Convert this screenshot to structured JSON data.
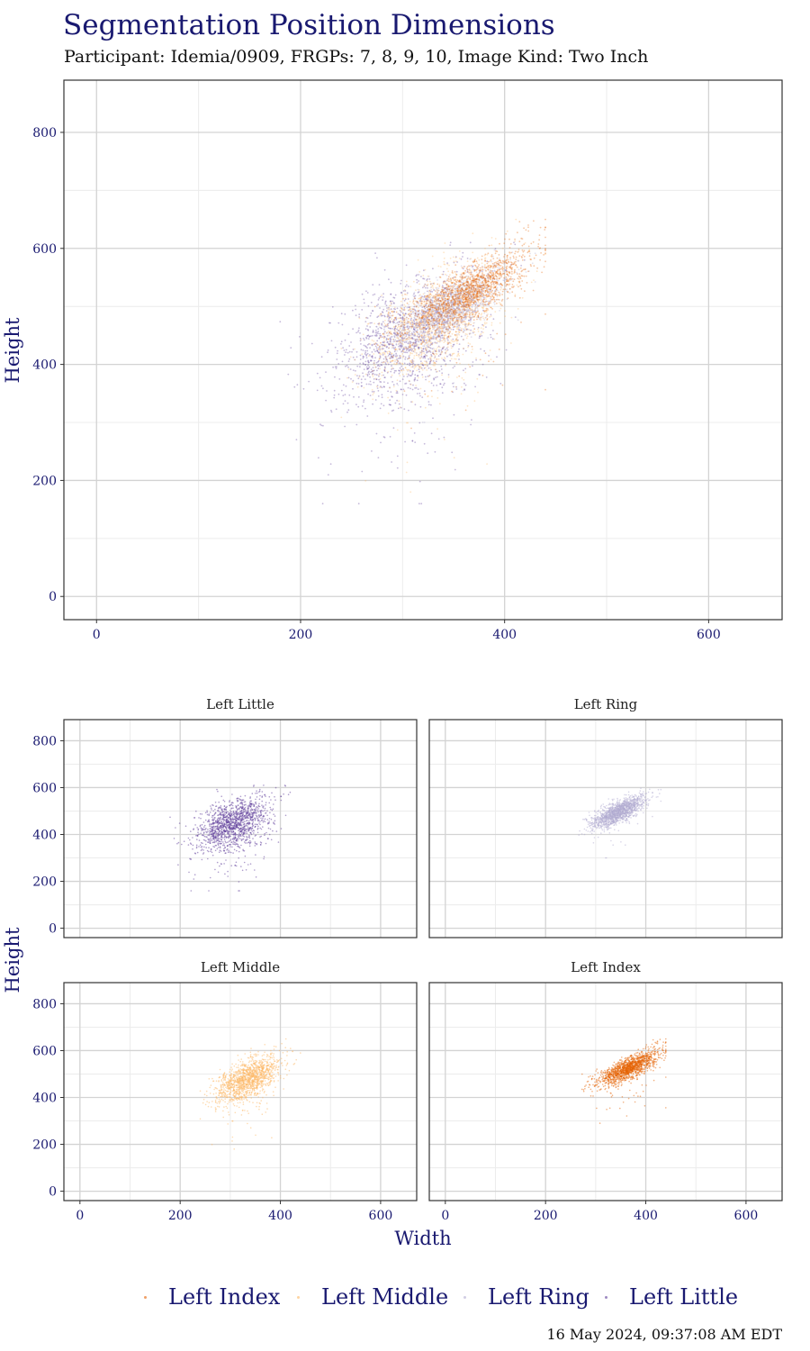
{
  "title": "Segmentation Position Dimensions",
  "subtitle": "Participant: Idemia/0909, FRGPs: 7, 8, 9, 10, Image Kind: Two Inch",
  "timestamp": "16 May 2024, 09:37:08 AM EDT",
  "colors": {
    "title": "#191970",
    "axis_text": "#191970",
    "left_little": "#5e3c99",
    "left_ring": "#b2abd2",
    "left_middle": "#fdb863",
    "left_index": "#e66101",
    "grid_major": "#d3d3d3",
    "grid_minor": "#ececec",
    "panel_border": "#333333"
  },
  "legend": {
    "position": "bottom",
    "items": [
      {
        "label": "Left Index",
        "color_key": "left_index"
      },
      {
        "label": "Left Middle",
        "color_key": "left_middle"
      },
      {
        "label": "Left Ring",
        "color_key": "left_ring"
      },
      {
        "label": "Left Little",
        "color_key": "left_little"
      }
    ]
  },
  "chart_data": [
    {
      "type": "scatter",
      "chart": "combined",
      "xlabel": "",
      "ylabel": "Height",
      "xlim": [
        -32,
        672
      ],
      "ylim": [
        -40,
        890
      ],
      "xticks": [
        0,
        200,
        400,
        600
      ],
      "yticks": [
        0,
        200,
        400,
        600,
        800
      ],
      "grid": true,
      "series": [
        {
          "name": "Left Little",
          "color_key": "left_little",
          "center": [
            305,
            450
          ],
          "width_range": [
            180,
            430
          ],
          "height_range": [
            160,
            610
          ]
        },
        {
          "name": "Left Ring",
          "color_key": "left_ring",
          "center": [
            345,
            495
          ],
          "width_range": [
            250,
            430
          ],
          "height_range": [
            300,
            620
          ]
        },
        {
          "name": "Left Middle",
          "color_key": "left_middle",
          "center": [
            335,
            480
          ],
          "width_range": [
            240,
            440
          ],
          "height_range": [
            180,
            650
          ]
        },
        {
          "name": "Left Index",
          "color_key": "left_index",
          "center": [
            365,
            525
          ],
          "width_range": [
            240,
            440
          ],
          "height_range": [
            230,
            650
          ]
        }
      ]
    },
    {
      "type": "scatter",
      "chart": "facets",
      "xlabel": "Width",
      "ylabel": "Height",
      "xlim": [
        -32,
        672
      ],
      "ylim": [
        -40,
        890
      ],
      "xticks": [
        0,
        200,
        400,
        600
      ],
      "yticks": [
        0,
        200,
        400,
        600,
        800
      ],
      "grid": true,
      "panels": [
        {
          "title": "Left Little",
          "series_index": 0
        },
        {
          "title": "Left Ring",
          "series_index": 1
        },
        {
          "title": "Left Middle",
          "series_index": 2
        },
        {
          "title": "Left Index",
          "series_index": 3
        }
      ]
    }
  ]
}
